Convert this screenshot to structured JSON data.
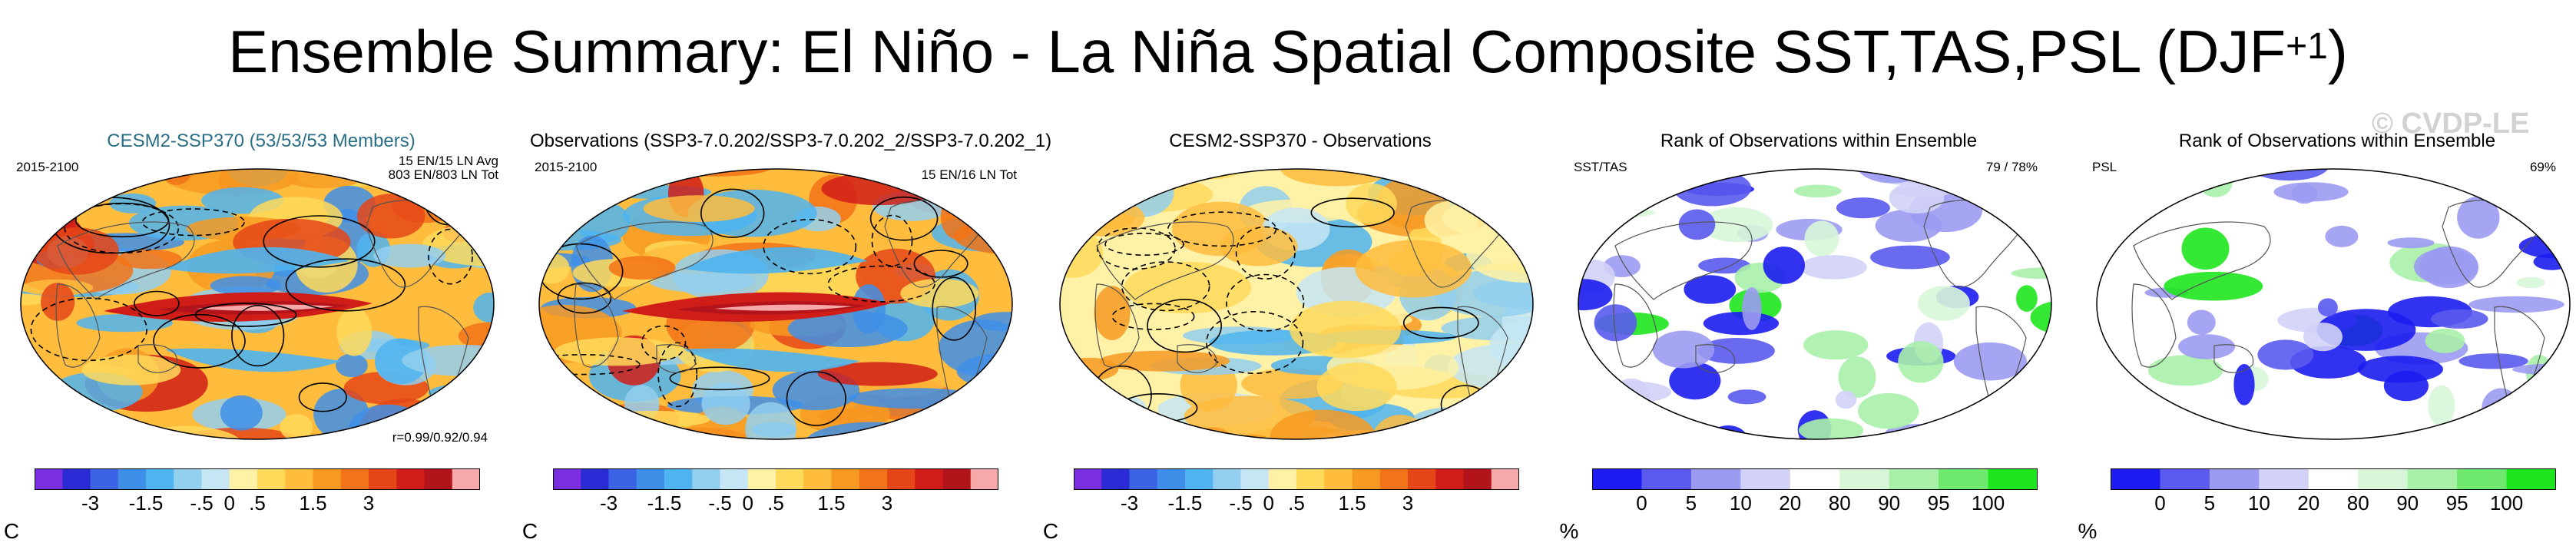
{
  "title": {
    "main": "Ensemble Summary: El Niño - La Niña Spatial Composite SST,TAS,PSL (DJF",
    "sup": "+1",
    "close": ")"
  },
  "watermark": "© CVDP-LE",
  "colors": {
    "temp_scale": [
      "#7b2ee0",
      "#2b2bd6",
      "#3a63e6",
      "#3f8fe8",
      "#4fb4f0",
      "#93cfee",
      "#c6e6f5",
      "#fff2a6",
      "#ffd95a",
      "#ffbc3d",
      "#f79a22",
      "#f27318",
      "#e54617",
      "#d11d17",
      "#b3141b",
      "#f7a9a9"
    ],
    "rank_scale": [
      "#1c1cf0",
      "#5a5aee",
      "#9b9bf2",
      "#d2d2f7",
      "#ffffff",
      "#d8f7d8",
      "#a8f0a8",
      "#6ee86e",
      "#1ee61e"
    ]
  },
  "panels": [
    {
      "title": "CESM2-SSP370 (53/53/53 Members)",
      "title_color": "#2a6e86",
      "period": "2015-2100",
      "info_line1": "15 EN/15 LN Avg",
      "info_line2": "803 EN/803 LN Tot",
      "corr": "r=0.99/0.92/0.94",
      "map_type": "composite",
      "colorbar": "temp",
      "ticks": [
        "-3",
        "-1.5",
        "-.5",
        "0",
        ".5",
        "1.5",
        "3"
      ],
      "unit": "C"
    },
    {
      "title": "Observations (SSP3-7.0.202/SSP3-7.0.202_2/SSP3-7.0.202_1)",
      "title_color": "#000000",
      "period": "2015-2100",
      "info_line1": "15 EN/16 LN Tot",
      "map_type": "composite",
      "colorbar": "temp",
      "ticks": [
        "-3",
        "-1.5",
        "-.5",
        "0",
        ".5",
        "1.5",
        "3"
      ],
      "unit": "C"
    },
    {
      "title": "CESM2-SSP370 - Observations",
      "title_color": "#000000",
      "map_type": "difference",
      "colorbar": "temp",
      "ticks": [
        "-3",
        "-1.5",
        "-.5",
        "0",
        ".5",
        "1.5",
        "3"
      ],
      "unit": "C"
    },
    {
      "title": "Rank of Observations within Ensemble",
      "title_color": "#000000",
      "corner_label": "SST/TAS",
      "pct": "79 /  78%",
      "map_type": "rank_sst",
      "colorbar": "rank",
      "ticks": [
        "0",
        "5",
        "10",
        "20",
        "80",
        "90",
        "95",
        "100"
      ],
      "unit": "%"
    },
    {
      "title": "Rank of Observations within Ensemble",
      "title_color": "#000000",
      "corner_label": "PSL",
      "pct": "69%",
      "map_type": "rank_psl",
      "colorbar": "rank",
      "ticks": [
        "0",
        "5",
        "10",
        "20",
        "80",
        "90",
        "95",
        "100"
      ],
      "unit": "%"
    }
  ]
}
